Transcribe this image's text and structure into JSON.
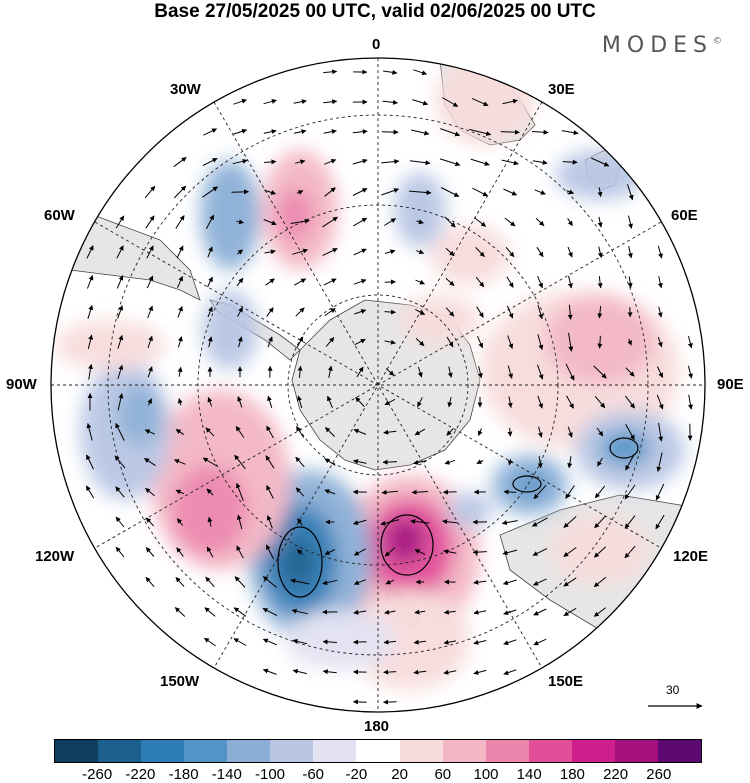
{
  "title": "Base 27/05/2025 00 UTC, valid 02/06/2025 00 UTC",
  "brand": {
    "name": "MODES",
    "mark": "©"
  },
  "longitude_labels": {
    "lon_0": "0",
    "lon_30e": "30E",
    "lon_60e": "60E",
    "lon_90e": "90E",
    "lon_120e": "120E",
    "lon_150e": "150E",
    "lon_180": "180",
    "lon_150w": "150W",
    "lon_120w": "120W",
    "lon_90w": "90W",
    "lon_60w": "60W",
    "lon_30w": "30W"
  },
  "vector_scale": {
    "label": "30"
  },
  "colorbar": {
    "colors": [
      "#0d3e5e",
      "#1b5f8e",
      "#2e7cb6",
      "#5394c6",
      "#8aaed6",
      "#b8c6e4",
      "#e2e2f2",
      "#ffffff",
      "#f8dcdc",
      "#f3b6c4",
      "#ec86ad",
      "#e24e9a",
      "#cf1f8c",
      "#a5107f",
      "#5c0a72"
    ],
    "ticks": [
      "-260",
      "-220",
      "-180",
      "-140",
      "-100",
      "-60",
      "-20",
      "20",
      "60",
      "100",
      "140",
      "180",
      "220",
      "260"
    ]
  },
  "anomaly_centers": [
    {
      "name": "dipole-positive-pacific",
      "sign": "positive",
      "value": 200
    },
    {
      "name": "dipole-negative-pacific",
      "sign": "negative",
      "value": -220
    },
    {
      "name": "ridge-south-indian",
      "sign": "positive",
      "value": 100
    },
    {
      "name": "trough-east-indian",
      "sign": "negative",
      "value": -140
    }
  ]
}
